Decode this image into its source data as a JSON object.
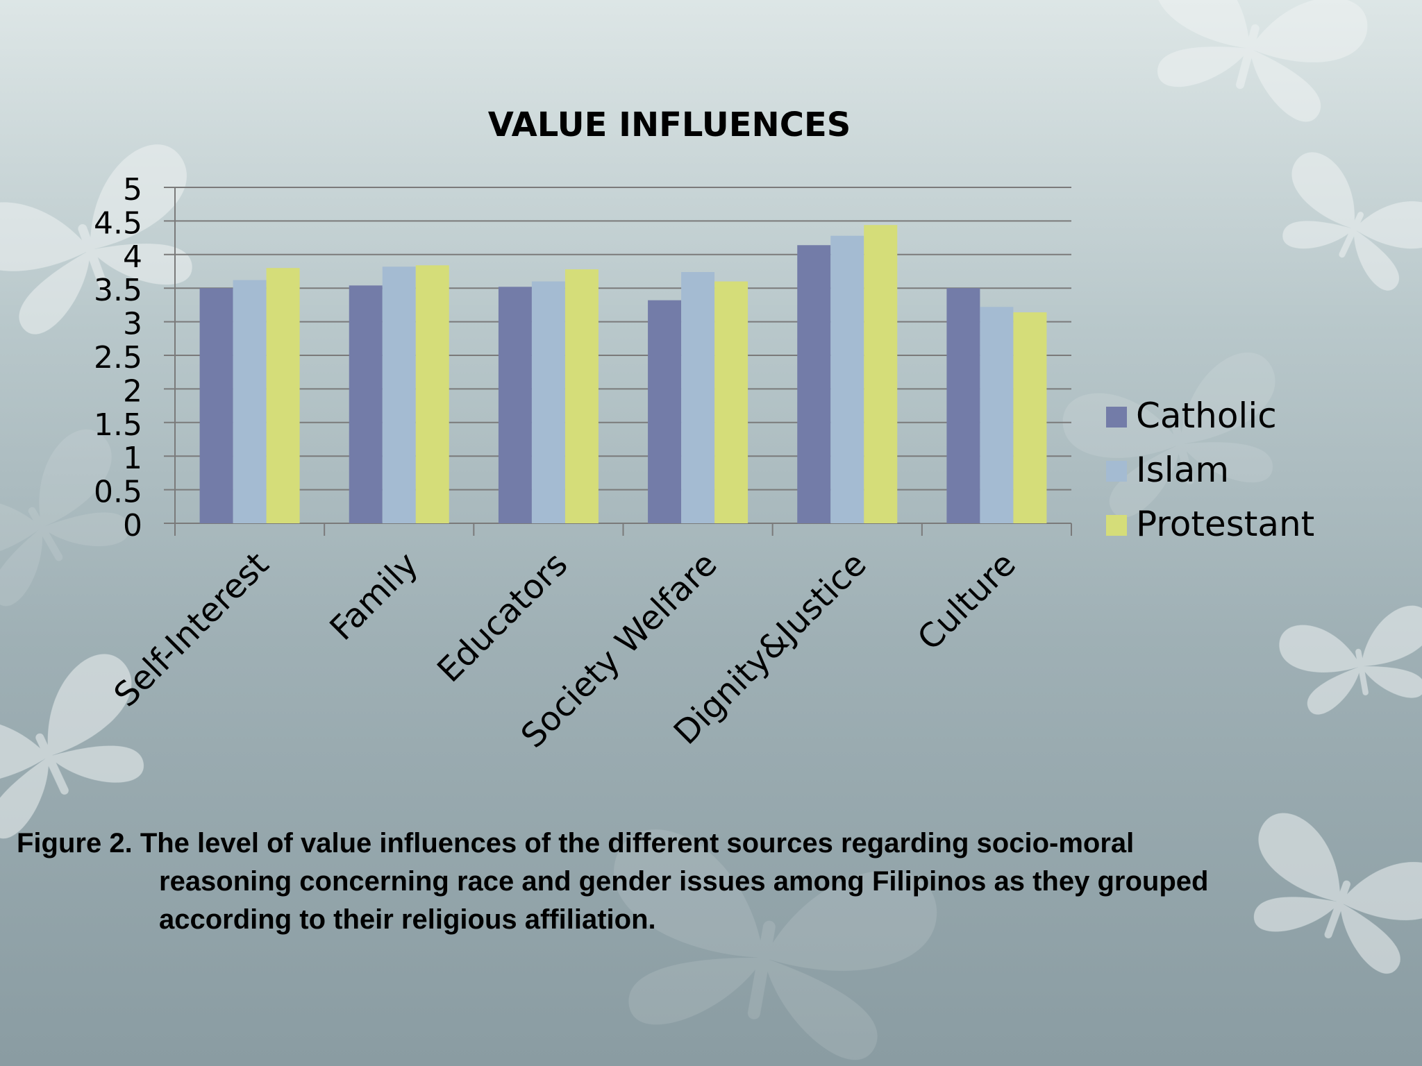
{
  "chart_data": {
    "type": "bar",
    "title": "VALUE INFLUENCES",
    "categories": [
      "Self-Interest",
      "Family",
      "Educators",
      "Society Welfare",
      "Dignity&Justice",
      "Culture"
    ],
    "series": [
      {
        "name": "Catholic",
        "color": "#737ca8",
        "values": [
          3.5,
          3.54,
          3.52,
          3.32,
          4.14,
          3.5
        ]
      },
      {
        "name": "Islam",
        "color": "#a4bbd2",
        "values": [
          3.62,
          3.82,
          3.6,
          3.74,
          4.28,
          3.22
        ]
      },
      {
        "name": "Protestant",
        "color": "#d5dd79",
        "values": [
          3.8,
          3.84,
          3.78,
          3.6,
          4.44,
          3.14
        ]
      }
    ],
    "ylim": [
      0,
      5
    ],
    "yticks": [
      "0",
      "0.5",
      "1",
      "1.5",
      "2",
      "2.5",
      "3",
      "3.5",
      "4",
      "4.5",
      "5"
    ],
    "xlabel": "",
    "ylabel": "",
    "grid": true,
    "legend_position": "right"
  },
  "caption": {
    "line1": "Figure 2. The level of value influences of the different sources regarding socio-moral",
    "line2": "reasoning concerning race and gender issues among Filipinos as they grouped",
    "line3": "according to their religious affiliation."
  }
}
